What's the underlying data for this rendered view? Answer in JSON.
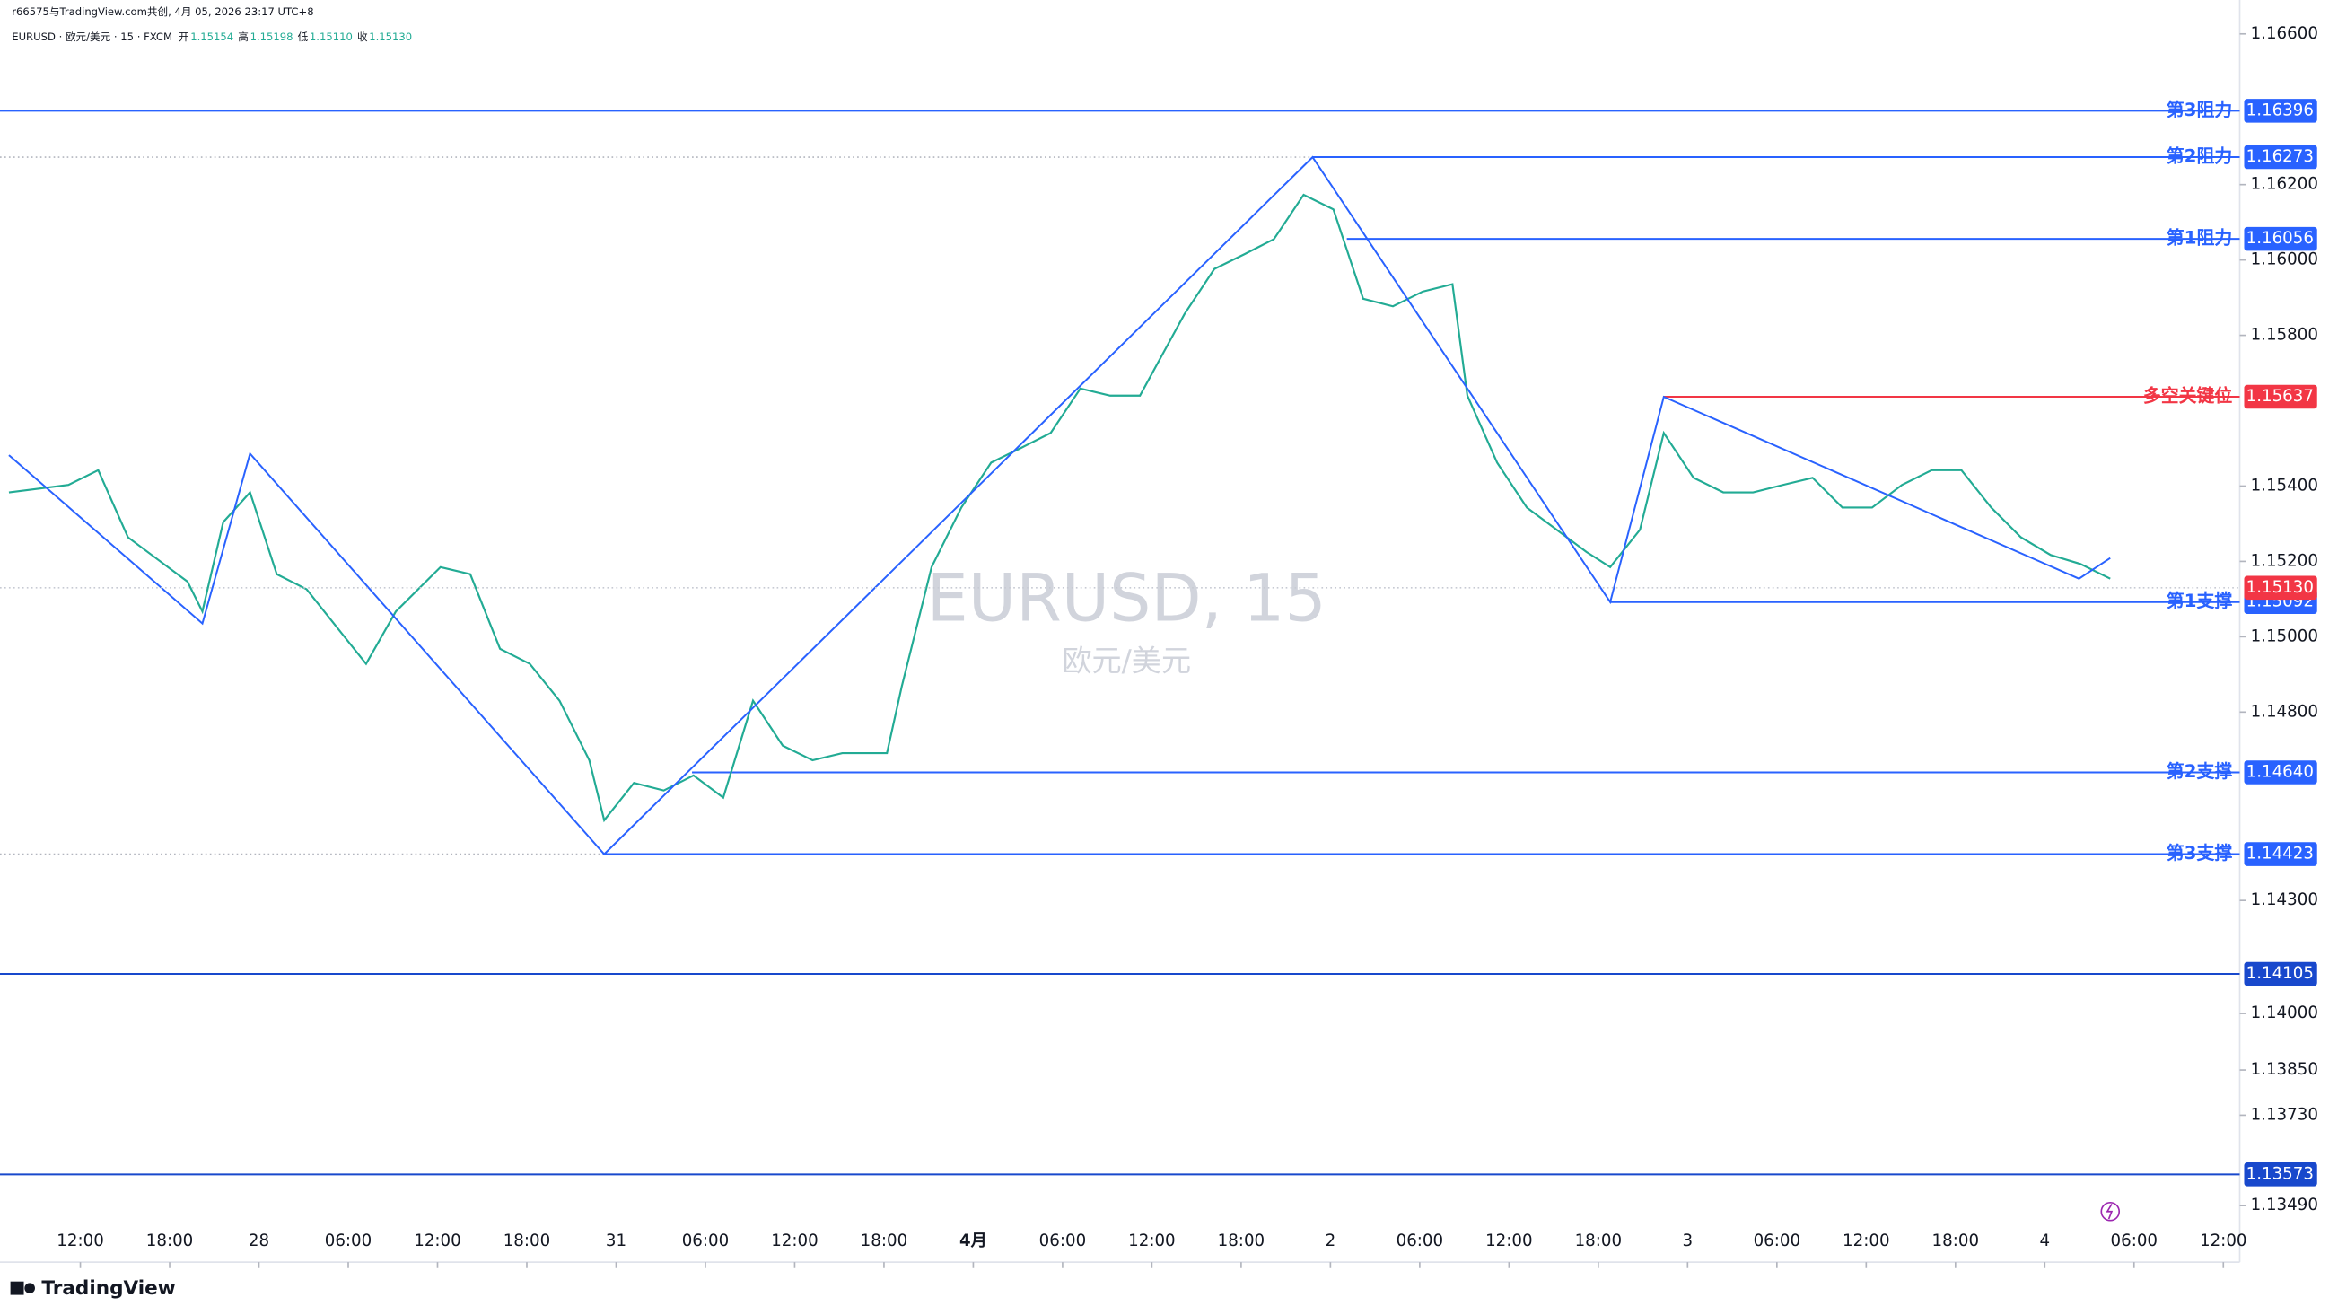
{
  "header": {
    "credit": "r66575与TradingView.com共创, 4月 05, 2026 23:17 UTC+8",
    "symbol": "EURUSD · 欧元/美元 · 15 · FXCM",
    "ohlc": [
      {
        "label": "开",
        "value": 1.15154
      },
      {
        "label": "高",
        "value": 1.15198
      },
      {
        "label": "低",
        "value": 1.1511,
        "value_label": "1.15110"
      },
      {
        "label": "收",
        "value": 1.1513,
        "value_label": "1.15130"
      }
    ]
  },
  "watermark": {
    "title": "EURUSD, 15",
    "subtitle": "欧元/美元"
  },
  "brand": "TradingView",
  "chart_data": {
    "type": "line",
    "xlim": [
      -4.8,
      145.1
    ],
    "ylim": [
      1.1334,
      1.1669
    ],
    "xticks": [
      {
        "value": 0,
        "label": "12:00"
      },
      {
        "value": 6,
        "label": "18:00"
      },
      {
        "value": 12,
        "label": "28"
      },
      {
        "value": 18,
        "label": "06:00"
      },
      {
        "value": 24,
        "label": "12:00"
      },
      {
        "value": 30,
        "label": "18:00"
      },
      {
        "value": 36,
        "label": "31"
      },
      {
        "value": 42,
        "label": "06:00"
      },
      {
        "value": 48,
        "label": "12:00"
      },
      {
        "value": 54,
        "label": "18:00"
      },
      {
        "value": 60,
        "label": "4月"
      },
      {
        "value": 66,
        "label": "06:00"
      },
      {
        "value": 72,
        "label": "12:00"
      },
      {
        "value": 78,
        "label": "18:00"
      },
      {
        "value": 84,
        "label": "2"
      },
      {
        "value": 90,
        "label": "06:00"
      },
      {
        "value": 96,
        "label": "12:00"
      },
      {
        "value": 102,
        "label": "18:00"
      },
      {
        "value": 108,
        "label": "3"
      },
      {
        "value": 114,
        "label": "06:00"
      },
      {
        "value": 120,
        "label": "12:00"
      },
      {
        "value": 126,
        "label": "18:00"
      },
      {
        "value": 132,
        "label": "4"
      },
      {
        "value": 138,
        "label": "06:00"
      },
      {
        "value": 144,
        "label": "12:00"
      }
    ],
    "yticks": [
      {
        "value": 1.166,
        "label": "1.16600"
      },
      {
        "value": 1.162,
        "label": "1.16200"
      },
      {
        "value": 1.16,
        "label": "1.16000"
      },
      {
        "value": 1.158,
        "label": "1.15800"
      },
      {
        "value": 1.154,
        "label": "1.15400"
      },
      {
        "value": 1.152,
        "label": "1.15200"
      },
      {
        "value": 1.15,
        "label": "1.15000"
      },
      {
        "value": 1.148,
        "label": "1.14800"
      },
      {
        "value": 1.143,
        "label": "1.14300"
      },
      {
        "value": 1.14,
        "label": "1.14000"
      },
      {
        "value": 1.1385,
        "label": "1.13850"
      },
      {
        "value": 1.1373,
        "label": "1.13730"
      },
      {
        "value": 1.1349,
        "label": "1.13490"
      }
    ],
    "series": [
      {
        "name": "EURUSD",
        "color": "#22ab94",
        "x": [
          -4.8,
          -0.8,
          1.2,
          3.2,
          5.2,
          7.2,
          8.2,
          9.6,
          11.4,
          13.2,
          15.2,
          17.2,
          19.2,
          21.2,
          24.2,
          26.2,
          28.2,
          30.2,
          32.2,
          34.2,
          35.2,
          37.2,
          39.2,
          41.2,
          43.2,
          45.2,
          47.2,
          49.2,
          51.2,
          54.2,
          55.2,
          57.2,
          59.2,
          61.2,
          63.2,
          65.2,
          67.2,
          69.2,
          71.2,
          74.2,
          76.2,
          78.2,
          80.2,
          82.2,
          84.2,
          86.2,
          88.2,
          90.2,
          92.2,
          93.2,
          95.2,
          97.2,
          99.2,
          101.2,
          102.8,
          104.8,
          106.4,
          108.4,
          110.4,
          112.4,
          114.4,
          116.4,
          118.4,
          120.4,
          122.4,
          124.4,
          126.4,
          128.4,
          130.4,
          132.4,
          134.4,
          136.4
        ],
        "values": [
          1.15383,
          1.15403,
          1.15442,
          1.15264,
          1.15205,
          1.15146,
          1.15067,
          1.15304,
          1.15383,
          1.15166,
          1.15126,
          1.15027,
          1.14928,
          1.15067,
          1.15185,
          1.15166,
          1.14968,
          1.14928,
          1.1483,
          1.14672,
          1.14513,
          1.14612,
          1.14592,
          1.14632,
          1.14573,
          1.1483,
          1.14711,
          1.14672,
          1.14691,
          1.14691,
          1.14869,
          1.15185,
          1.15343,
          1.15462,
          1.15501,
          1.15541,
          1.15659,
          1.1564,
          1.1564,
          1.15857,
          1.15976,
          1.16015,
          1.16055,
          1.16173,
          1.16134,
          1.15897,
          1.15877,
          1.15916,
          1.15936,
          1.1564,
          1.15462,
          1.15343,
          1.15284,
          1.15225,
          1.15185,
          1.15284,
          1.15541,
          1.15422,
          1.15383,
          1.15383,
          1.15403,
          1.15422,
          1.15343,
          1.15343,
          1.15403,
          1.15442,
          1.15442,
          1.15343,
          1.15264,
          1.15217,
          1.15193,
          1.15154
        ]
      },
      {
        "name": "zigzag",
        "color": "#2962ff",
        "x": [
          -4.8,
          8.2,
          11.4,
          35.2,
          82.8,
          102.8,
          106.4,
          134.3,
          136.4
        ],
        "values": [
          1.15482,
          1.15035,
          1.15486,
          1.14423,
          1.16273,
          1.15092,
          1.15637,
          1.15154,
          1.15209
        ]
      }
    ],
    "levels": [
      {
        "name": "第3阻力",
        "value": 1.16396,
        "color": "#2962ff",
        "from": null
      },
      {
        "name": "第2阻力",
        "value": 1.16273,
        "color": "#2962ff",
        "from": 82.8,
        "dotted_before": true
      },
      {
        "name": "第1阻力",
        "value": 1.16056,
        "color": "#2962ff",
        "from": 85.1
      },
      {
        "name": "多空关键位",
        "value": 1.15637,
        "color": "#f23645",
        "from": 106.4
      },
      {
        "name": "第1支撑",
        "value": 1.15092,
        "color": "#2962ff",
        "from": 102.8
      },
      {
        "name": "第2支撑",
        "value": 1.1464,
        "value_label": "1.14640",
        "color": "#2962ff",
        "from": 41.1
      },
      {
        "name": "第3支撑",
        "value": 1.14423,
        "color": "#2962ff",
        "from": 35.1,
        "dotted_before": true
      },
      {
        "value": 1.14105,
        "color": "#1848cc",
        "from": null
      },
      {
        "value": 1.13573,
        "color": "#1848cc",
        "from": null
      }
    ],
    "last_price": {
      "value": 1.1513,
      "value_label": "1.15130",
      "color": "#f23645"
    }
  }
}
